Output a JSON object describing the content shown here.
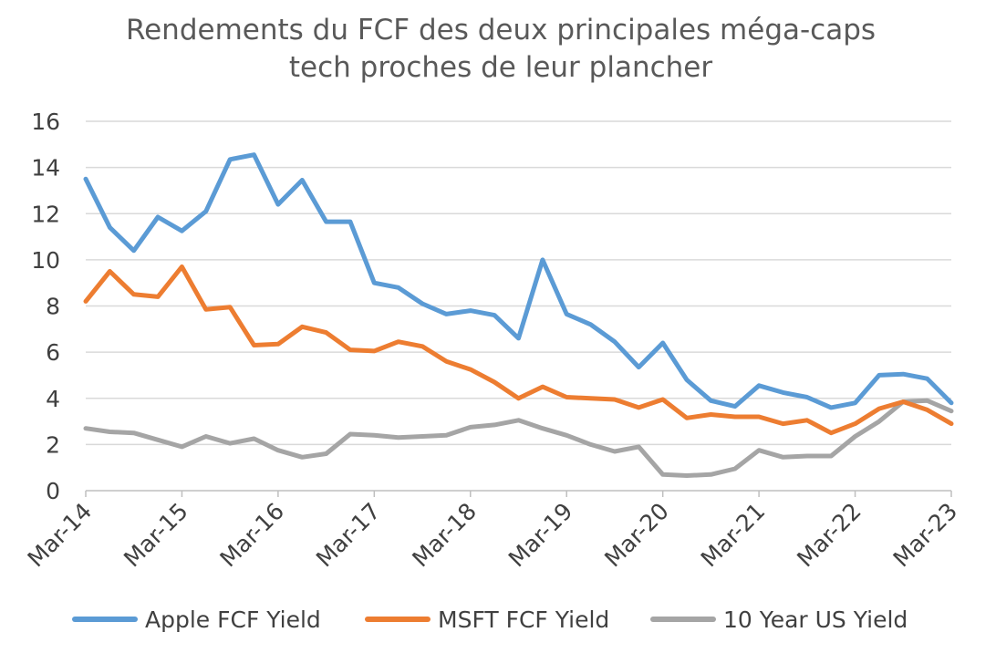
{
  "chart_data": {
    "type": "line",
    "title_lines": [
      "Rendements du FCF des deux principales méga-caps",
      "tech proches de leur plancher"
    ],
    "xlabel": "",
    "ylabel": "",
    "ylim": [
      0,
      16
    ],
    "yticks": [
      "0",
      "2",
      "4",
      "6",
      "8",
      "10",
      "12",
      "14",
      "16"
    ],
    "x_tick_labels": [
      "Mar-14",
      "Mar-15",
      "Mar-16",
      "Mar-17",
      "Mar-18",
      "Mar-19",
      "Mar-20",
      "Mar-21",
      "Mar-22",
      "Mar-23"
    ],
    "x_tick_every": 4,
    "grid": true,
    "legend_position": "bottom",
    "x": [
      "Mar-14",
      "Jun-14",
      "Sep-14",
      "Dec-14",
      "Mar-15",
      "Jun-15",
      "Sep-15",
      "Dec-15",
      "Mar-16",
      "Jun-16",
      "Sep-16",
      "Dec-16",
      "Mar-17",
      "Jun-17",
      "Sep-17",
      "Dec-17",
      "Mar-18",
      "Jun-18",
      "Sep-18",
      "Dec-18",
      "Mar-19",
      "Jun-19",
      "Sep-19",
      "Dec-19",
      "Mar-20",
      "Jun-20",
      "Sep-20",
      "Dec-20",
      "Mar-21",
      "Jun-21",
      "Sep-21",
      "Dec-21",
      "Mar-22",
      "Jun-22",
      "Sep-22",
      "Dec-22",
      "Mar-23"
    ],
    "series": [
      {
        "name": "Apple FCF Yield",
        "color": "#5b9bd5",
        "values": [
          13.5,
          11.4,
          10.4,
          11.85,
          11.25,
          12.1,
          14.35,
          14.55,
          12.4,
          13.45,
          11.65,
          11.65,
          9.0,
          8.8,
          8.1,
          7.65,
          7.8,
          7.6,
          6.6,
          10.0,
          7.65,
          7.2,
          6.45,
          5.35,
          6.4,
          4.8,
          3.9,
          3.65,
          4.55,
          4.25,
          4.05,
          3.6,
          3.8,
          5.0,
          5.05,
          4.85,
          3.8
        ]
      },
      {
        "name": "MSFT FCF Yield",
        "color": "#ed7d31",
        "values": [
          8.2,
          9.5,
          8.5,
          8.4,
          9.7,
          7.85,
          7.95,
          6.3,
          6.35,
          7.1,
          6.85,
          6.1,
          6.05,
          6.45,
          6.25,
          5.6,
          5.25,
          4.7,
          4.0,
          4.5,
          4.05,
          4.0,
          3.95,
          3.6,
          3.95,
          3.15,
          3.3,
          3.2,
          3.2,
          2.9,
          3.05,
          2.5,
          2.9,
          3.55,
          3.85,
          3.5,
          2.9
        ]
      },
      {
        "name": "10 Year US Yield",
        "color": "#a5a5a5",
        "values": [
          2.7,
          2.55,
          2.5,
          2.2,
          1.9,
          2.35,
          2.05,
          2.25,
          1.75,
          1.45,
          1.6,
          2.45,
          2.4,
          2.3,
          2.35,
          2.4,
          2.75,
          2.85,
          3.05,
          2.7,
          2.4,
          2.0,
          1.7,
          1.9,
          0.7,
          0.65,
          0.7,
          0.95,
          1.75,
          1.45,
          1.5,
          1.5,
          2.35,
          3.0,
          3.85,
          3.9,
          3.45
        ]
      }
    ]
  }
}
